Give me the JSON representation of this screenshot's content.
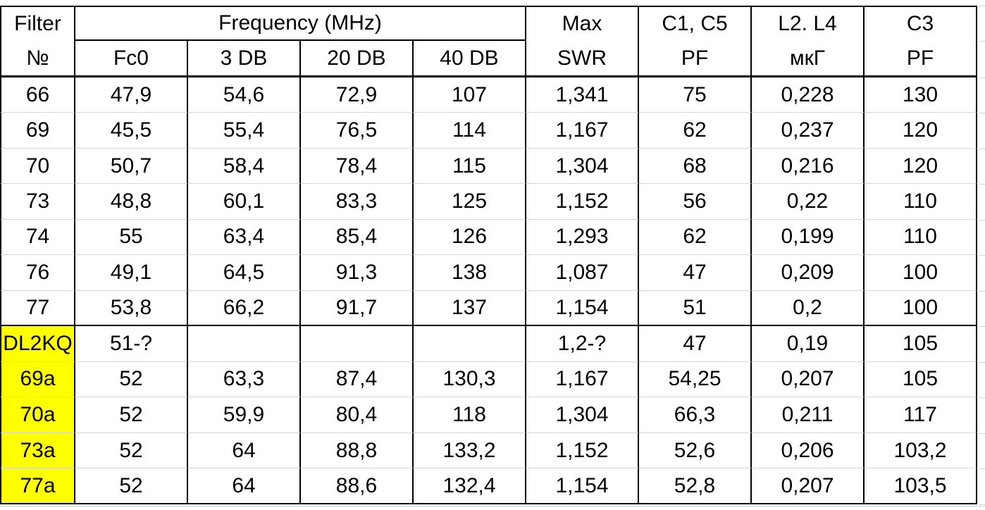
{
  "table": {
    "header": [
      [
        "Filter",
        "Frequency (MHz)",
        "Max",
        "C1, C5",
        "L2. L4",
        "C3"
      ],
      [
        "№",
        "Fc0",
        "3 DB",
        "20 DB",
        "40 DB",
        "SWR",
        "PF",
        "мкГ",
        "PF"
      ]
    ],
    "rows": [
      [
        "66",
        "47,9",
        "54,6",
        "72,9",
        "107",
        "1,341",
        "75",
        "0,228",
        "130"
      ],
      [
        "69",
        "45,5",
        "55,4",
        "76,5",
        "114",
        "1,167",
        "62",
        "0,237",
        "120"
      ],
      [
        "70",
        "50,7",
        "58,4",
        "78,4",
        "115",
        "1,304",
        "68",
        "0,216",
        "120"
      ],
      [
        "73",
        "48,8",
        "60,1",
        "83,3",
        "125",
        "1,152",
        "56",
        "0,22",
        "110"
      ],
      [
        "74",
        "55",
        "63,4",
        "85,4",
        "126",
        "1,293",
        "62",
        "0,199",
        "110"
      ],
      [
        "76",
        "49,1",
        "64,5",
        "91,3",
        "138",
        "1,087",
        "47",
        "0,209",
        "100"
      ],
      [
        "77",
        "53,8",
        "66,2",
        "91,7",
        "137",
        "1,154",
        "51",
        "0,2",
        "100"
      ],
      [
        "DL2KQ",
        "51-?",
        null,
        null,
        null,
        "1,2-?",
        "47",
        "0,19",
        "105"
      ],
      [
        "69a",
        "52",
        "63,3",
        "87,4",
        "130,3",
        "1,167",
        "54,25",
        "0,207",
        "105"
      ],
      [
        "70a",
        "52",
        "59,9",
        "80,4",
        "118",
        "1,304",
        "66,3",
        "0,211",
        "117"
      ],
      [
        "73a",
        "52",
        "64",
        "88,8",
        "133,2",
        "1,152",
        "52,6",
        "0,206",
        "103,2"
      ],
      [
        "77a",
        "52",
        "64",
        "88,6",
        "132,4",
        "1,154",
        "52,8",
        "0,207",
        "103,5"
      ]
    ]
  }
}
